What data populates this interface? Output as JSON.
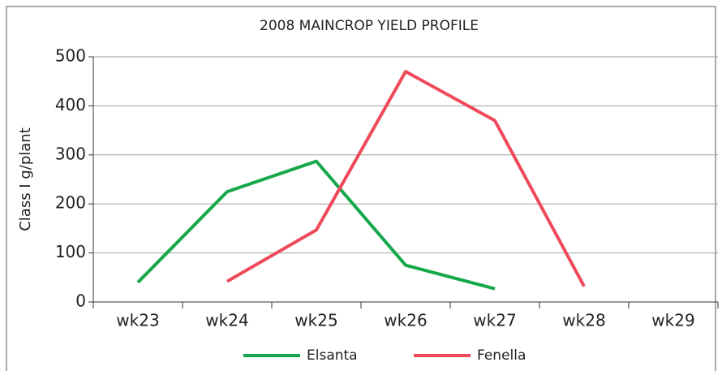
{
  "chart_data": {
    "type": "line",
    "title": "2008 MAINCROP YIELD PROFILE",
    "y_label": "Class I g/plant",
    "categories": [
      "wk23",
      "wk24",
      "wk25",
      "wk26",
      "wk27",
      "wk28",
      "wk29"
    ],
    "series": [
      {
        "name": "Elsanta",
        "color": "#16a84a",
        "values": [
          40,
          225,
          287,
          75,
          27,
          null,
          null
        ]
      },
      {
        "name": "Fenella",
        "color": "#ee4b5a",
        "values": [
          null,
          42,
          147,
          470,
          370,
          32,
          null
        ]
      }
    ],
    "ylim": [
      0,
      500
    ],
    "yticks": [
      0,
      100,
      200,
      300,
      400,
      500
    ],
    "grid": true,
    "legend": "bottom"
  }
}
